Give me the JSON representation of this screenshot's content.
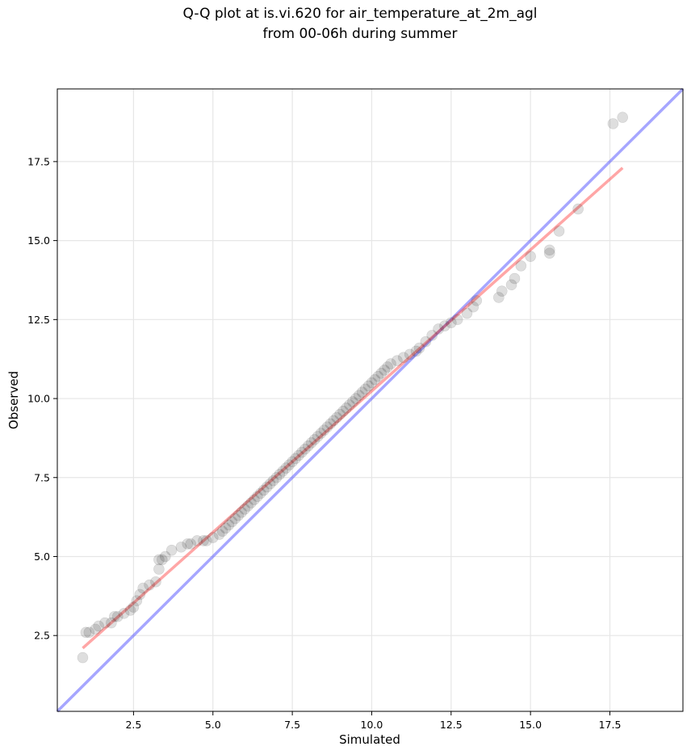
{
  "chart_data": {
    "type": "scatter",
    "title": "Q-Q plot at is.vi.620 for air_temperature_at_2m_agl",
    "subtitle": "from 00-06h during summer",
    "xlabel": "Simulated",
    "ylabel": "Observed",
    "xlim": [
      0.1,
      19.8
    ],
    "ylim": [
      0.1,
      19.8
    ],
    "x_ticks": [
      "2.5",
      "5.0",
      "7.5",
      "10.0",
      "12.5",
      "15.0",
      "17.5"
    ],
    "y_ticks": [
      "2.5",
      "5.0",
      "7.5",
      "10.0",
      "12.5",
      "15.0",
      "17.5"
    ],
    "grid": true,
    "colors": {
      "points": "#000000",
      "fit_line": "#ff4d4d",
      "identity_line": "#4d4dff"
    },
    "identity_line": {
      "x": [
        0.1,
        19.8
      ],
      "y": [
        0.1,
        19.8
      ]
    },
    "fit_line": {
      "x": [
        0.9,
        17.9
      ],
      "y": [
        2.1,
        17.3
      ]
    },
    "points": {
      "x": [
        0.9,
        1.0,
        1.1,
        1.3,
        1.4,
        1.6,
        1.8,
        1.9,
        2.0,
        2.2,
        2.4,
        2.5,
        2.6,
        2.7,
        2.8,
        3.0,
        3.2,
        3.3,
        3.3,
        3.4,
        3.5,
        3.7,
        4.0,
        4.2,
        4.3,
        4.5,
        4.7,
        4.8,
        5.0,
        5.2,
        5.3,
        5.4,
        5.5,
        5.6,
        5.7,
        5.8,
        5.9,
        6.0,
        6.1,
        6.2,
        6.3,
        6.4,
        6.5,
        6.6,
        6.7,
        6.8,
        6.9,
        7.0,
        7.1,
        7.2,
        7.3,
        7.4,
        7.5,
        7.6,
        7.7,
        7.8,
        7.9,
        8.0,
        8.1,
        8.2,
        8.3,
        8.4,
        8.5,
        8.6,
        8.7,
        8.8,
        8.9,
        9.0,
        9.1,
        9.2,
        9.3,
        9.4,
        9.5,
        9.6,
        9.7,
        9.8,
        9.9,
        10.0,
        10.1,
        10.2,
        10.3,
        10.4,
        10.5,
        10.6,
        10.8,
        11.0,
        11.2,
        11.4,
        11.5,
        11.7,
        11.9,
        12.1,
        12.3,
        12.5,
        12.7,
        13.0,
        13.2,
        13.3,
        14.0,
        14.1,
        14.4,
        14.5,
        14.7,
        15.0,
        15.6,
        15.6,
        15.9,
        16.5,
        17.6,
        17.9
      ],
      "y": [
        1.8,
        2.6,
        2.6,
        2.7,
        2.8,
        2.9,
        2.9,
        3.1,
        3.1,
        3.2,
        3.3,
        3.4,
        3.6,
        3.8,
        4.0,
        4.1,
        4.2,
        4.6,
        4.9,
        4.9,
        5.0,
        5.2,
        5.3,
        5.4,
        5.4,
        5.5,
        5.5,
        5.5,
        5.6,
        5.7,
        5.8,
        5.9,
        6.0,
        6.1,
        6.2,
        6.3,
        6.4,
        6.5,
        6.6,
        6.7,
        6.8,
        6.9,
        7.0,
        7.1,
        7.2,
        7.3,
        7.4,
        7.5,
        7.6,
        7.7,
        7.8,
        7.9,
        8.0,
        8.1,
        8.2,
        8.3,
        8.4,
        8.5,
        8.6,
        8.7,
        8.8,
        8.9,
        9.0,
        9.1,
        9.2,
        9.3,
        9.4,
        9.5,
        9.6,
        9.7,
        9.8,
        9.9,
        10.0,
        10.1,
        10.2,
        10.3,
        10.4,
        10.5,
        10.6,
        10.7,
        10.8,
        10.9,
        11.0,
        11.1,
        11.2,
        11.3,
        11.4,
        11.5,
        11.6,
        11.8,
        12.0,
        12.2,
        12.3,
        12.4,
        12.5,
        12.7,
        12.9,
        13.1,
        13.2,
        13.4,
        13.6,
        13.8,
        14.2,
        14.5,
        14.6,
        14.7,
        15.3,
        16.0,
        18.7,
        18.9
      ]
    }
  }
}
